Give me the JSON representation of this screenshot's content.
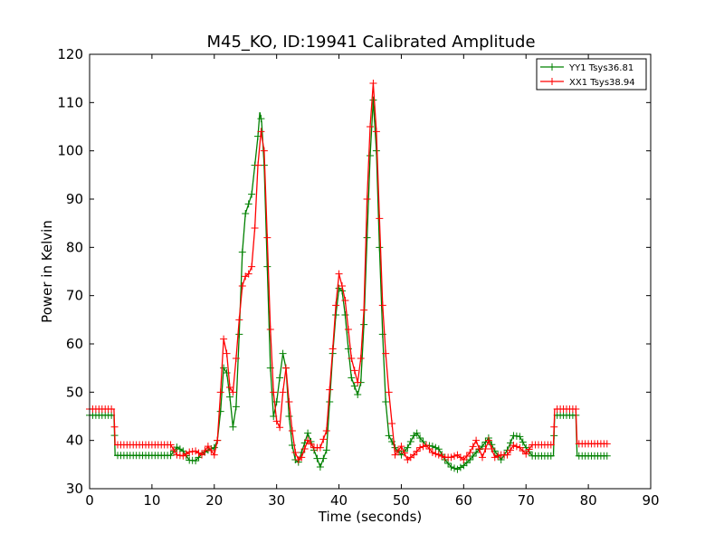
{
  "chart_data": {
    "type": "line",
    "title": "M45_KO, ID:19941 Calibrated Amplitude",
    "xlabel": "Time (seconds)",
    "ylabel": "Power in Kelvin",
    "xlim": [
      0,
      90
    ],
    "ylim": [
      30,
      120
    ],
    "xticks": [
      "0",
      "10",
      "20",
      "30",
      "40",
      "50",
      "60",
      "70",
      "80",
      "90"
    ],
    "yticks": [
      "30",
      "40",
      "50",
      "60",
      "70",
      "80",
      "90",
      "100",
      "110",
      "120"
    ],
    "grid": false,
    "legend_position": "top-right",
    "marker": "+",
    "series": [
      {
        "name": "YY1 Tsys36.81",
        "color": "#008000",
        "points": [
          [
            0.0,
            45.2
          ],
          [
            3.9,
            45.2
          ],
          [
            4.1,
            36.9
          ],
          [
            13.0,
            36.9
          ],
          [
            14.0,
            38.6
          ],
          [
            15.0,
            37.8
          ],
          [
            16.0,
            35.9
          ],
          [
            17.0,
            35.8
          ],
          [
            18.0,
            37.2
          ],
          [
            19.0,
            38.0
          ],
          [
            20.0,
            38.5
          ],
          [
            20.5,
            40.0
          ],
          [
            21.0,
            46.0
          ],
          [
            21.5,
            55.0
          ],
          [
            22.0,
            54.0
          ],
          [
            22.5,
            49.0
          ],
          [
            23.0,
            42.8
          ],
          [
            23.5,
            47.0
          ],
          [
            24.0,
            62.0
          ],
          [
            24.5,
            79.0
          ],
          [
            25.0,
            87.0
          ],
          [
            25.5,
            89.0
          ],
          [
            26.0,
            91.0
          ],
          [
            26.5,
            97.0
          ],
          [
            27.0,
            103.0
          ],
          [
            27.3,
            108.0
          ],
          [
            27.6,
            106.0
          ],
          [
            28.0,
            97.0
          ],
          [
            28.5,
            76.0
          ],
          [
            29.0,
            55.0
          ],
          [
            29.5,
            45.0
          ],
          [
            30.0,
            48.0
          ],
          [
            30.5,
            53.0
          ],
          [
            31.0,
            58.0
          ],
          [
            31.5,
            55.0
          ],
          [
            32.0,
            45.0
          ],
          [
            32.5,
            39.0
          ],
          [
            33.0,
            36.0
          ],
          [
            33.5,
            35.5
          ],
          [
            34.0,
            37.5
          ],
          [
            35.0,
            41.5
          ],
          [
            36.0,
            38.0
          ],
          [
            37.0,
            34.5
          ],
          [
            38.0,
            38.0
          ],
          [
            39.0,
            58.0
          ],
          [
            39.5,
            66.0
          ],
          [
            40.0,
            71.5
          ],
          [
            40.5,
            71.0
          ],
          [
            41.0,
            66.0
          ],
          [
            41.5,
            59.0
          ],
          [
            42.0,
            53.0
          ],
          [
            43.0,
            49.5
          ],
          [
            43.5,
            52.0
          ],
          [
            44.0,
            64.0
          ],
          [
            44.5,
            82.0
          ],
          [
            45.0,
            99.0
          ],
          [
            45.5,
            110.5
          ],
          [
            46.0,
            100.0
          ],
          [
            46.5,
            80.0
          ],
          [
            47.0,
            62.0
          ],
          [
            47.5,
            48.0
          ],
          [
            48.0,
            41.0
          ],
          [
            49.0,
            38.5
          ],
          [
            50.0,
            37.0
          ],
          [
            51.0,
            38.5
          ],
          [
            52.0,
            41.0
          ],
          [
            52.5,
            41.5
          ],
          [
            53.0,
            40.5
          ],
          [
            54.0,
            39.0
          ],
          [
            55.0,
            38.8
          ],
          [
            56.0,
            38.2
          ],
          [
            57.0,
            36.0
          ],
          [
            58.0,
            34.5
          ],
          [
            59.0,
            34.0
          ],
          [
            60.0,
            34.8
          ],
          [
            61.0,
            36.0
          ],
          [
            62.0,
            37.5
          ],
          [
            63.0,
            38.8
          ],
          [
            64.0,
            40.5
          ],
          [
            65.0,
            37.8
          ],
          [
            66.0,
            36.0
          ],
          [
            67.0,
            38.0
          ],
          [
            68.0,
            41.0
          ],
          [
            69.0,
            40.8
          ],
          [
            70.0,
            38.5
          ],
          [
            71.0,
            36.8
          ],
          [
            74.4,
            36.8
          ],
          [
            74.6,
            45.2
          ],
          [
            78.0,
            45.2
          ],
          [
            78.2,
            36.8
          ],
          [
            83.0,
            36.8
          ]
        ]
      },
      {
        "name": "XX1 Tsys38.94",
        "color": "#ff0000",
        "points": [
          [
            0.0,
            46.5
          ],
          [
            3.9,
            46.5
          ],
          [
            4.1,
            39.1
          ],
          [
            13.0,
            39.1
          ],
          [
            14.0,
            37.0
          ],
          [
            15.0,
            36.8
          ],
          [
            16.0,
            37.6
          ],
          [
            17.0,
            37.8
          ],
          [
            18.0,
            37.0
          ],
          [
            19.0,
            38.8
          ],
          [
            20.0,
            37.0
          ],
          [
            20.5,
            40.0
          ],
          [
            21.0,
            50.0
          ],
          [
            21.5,
            61.0
          ],
          [
            22.0,
            58.0
          ],
          [
            22.5,
            51.0
          ],
          [
            23.0,
            50.0
          ],
          [
            23.5,
            57.0
          ],
          [
            24.0,
            65.0
          ],
          [
            24.5,
            72.0
          ],
          [
            25.0,
            74.0
          ],
          [
            25.5,
            74.5
          ],
          [
            26.0,
            76.0
          ],
          [
            26.5,
            84.0
          ],
          [
            27.0,
            97.0
          ],
          [
            27.5,
            104.0
          ],
          [
            28.0,
            100.0
          ],
          [
            28.5,
            82.0
          ],
          [
            29.0,
            63.0
          ],
          [
            29.5,
            50.0
          ],
          [
            30.0,
            44.0
          ],
          [
            30.5,
            42.7
          ],
          [
            31.0,
            50.0
          ],
          [
            31.5,
            55.0
          ],
          [
            32.0,
            48.0
          ],
          [
            32.5,
            42.0
          ],
          [
            33.0,
            37.5
          ],
          [
            33.5,
            36.0
          ],
          [
            34.0,
            36.5
          ],
          [
            35.0,
            40.0
          ],
          [
            36.0,
            38.5
          ],
          [
            37.0,
            38.5
          ],
          [
            38.0,
            42.0
          ],
          [
            39.0,
            59.0
          ],
          [
            39.5,
            68.0
          ],
          [
            40.0,
            74.5
          ],
          [
            40.5,
            72.0
          ],
          [
            41.0,
            69.0
          ],
          [
            41.5,
            63.0
          ],
          [
            42.0,
            57.0
          ],
          [
            43.0,
            52.0
          ],
          [
            43.5,
            57.0
          ],
          [
            44.0,
            67.0
          ],
          [
            44.5,
            90.0
          ],
          [
            45.0,
            105.0
          ],
          [
            45.5,
            114.0
          ],
          [
            46.0,
            104.0
          ],
          [
            46.5,
            86.0
          ],
          [
            47.0,
            68.0
          ],
          [
            47.5,
            58.0
          ],
          [
            48.0,
            50.0
          ],
          [
            49.0,
            37.0
          ],
          [
            50.0,
            38.8
          ],
          [
            51.0,
            36.0
          ],
          [
            52.0,
            37.0
          ],
          [
            53.0,
            38.5
          ],
          [
            54.0,
            39.0
          ],
          [
            55.0,
            37.5
          ],
          [
            56.0,
            37.0
          ],
          [
            57.0,
            36.5
          ],
          [
            58.0,
            36.5
          ],
          [
            59.0,
            37.0
          ],
          [
            60.0,
            36.0
          ],
          [
            61.0,
            37.5
          ],
          [
            62.0,
            40.0
          ],
          [
            63.0,
            36.5
          ],
          [
            64.0,
            40.0
          ],
          [
            65.0,
            36.5
          ],
          [
            66.0,
            37.0
          ],
          [
            67.0,
            37.0
          ],
          [
            68.0,
            39.0
          ],
          [
            69.0,
            38.5
          ],
          [
            70.0,
            37.2
          ],
          [
            71.0,
            39.1
          ],
          [
            74.4,
            39.1
          ],
          [
            74.6,
            46.5
          ],
          [
            78.0,
            46.5
          ],
          [
            78.2,
            39.3
          ],
          [
            83.0,
            39.3
          ]
        ]
      }
    ]
  }
}
